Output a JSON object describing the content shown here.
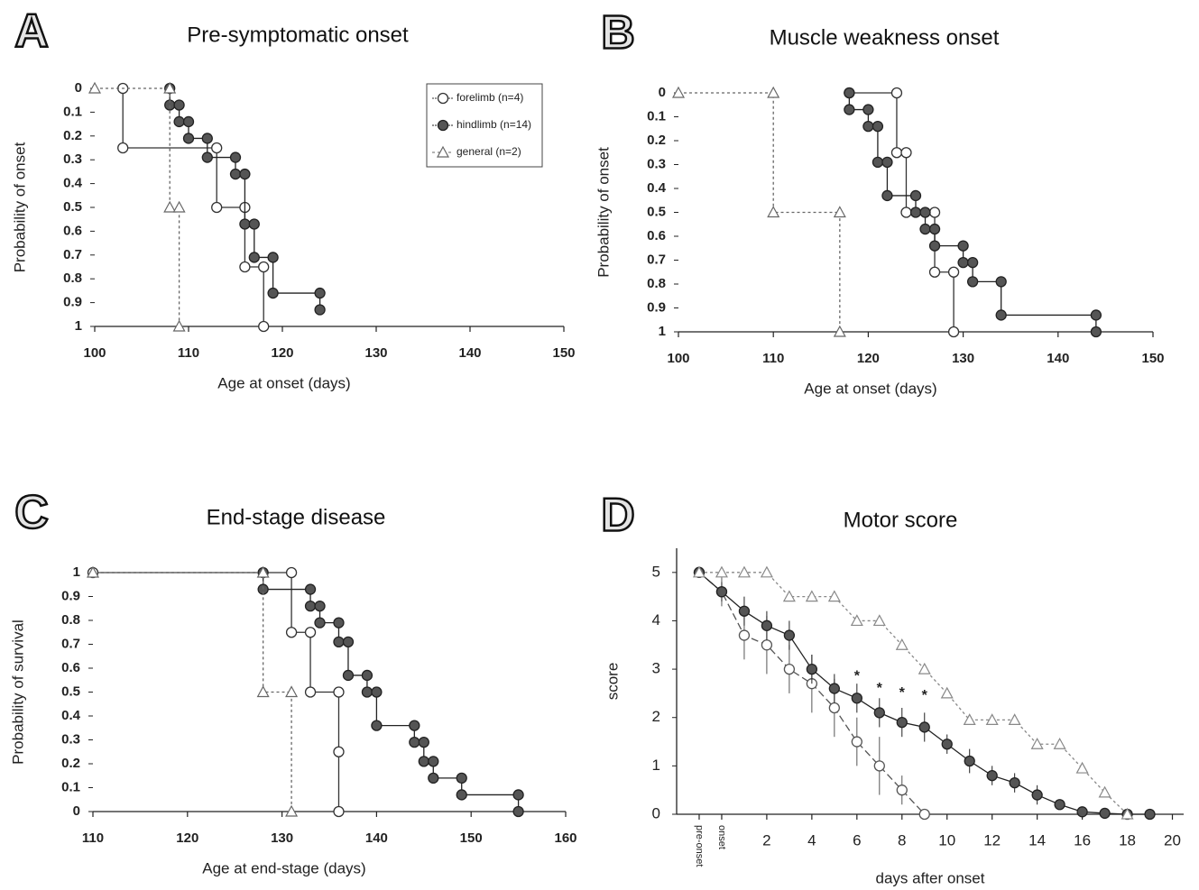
{
  "chart_data": [
    {
      "type": "step",
      "panel": "A",
      "title": "Pre-symptomatic onset",
      "xlabel": "Age at onset (days)",
      "ylabel": "Probability of onset",
      "xlim": [
        100,
        150
      ],
      "xticks": [
        100,
        110,
        120,
        130,
        140,
        150
      ],
      "ylim": [
        1,
        0
      ],
      "yticks": [
        0,
        0.1,
        0.2,
        0.3,
        0.4,
        0.5,
        0.6,
        0.7,
        0.8,
        0.9,
        1
      ],
      "legend": "upper right",
      "series": [
        {
          "name": "forelimb (n=4)",
          "color": "#333333",
          "fill": "#ffffff",
          "marker": "circle",
          "dash": "none",
          "x": [
            103,
            103,
            113,
            113,
            116,
            116,
            118,
            118
          ],
          "values": [
            0,
            0.25,
            0.25,
            0.5,
            0.5,
            0.75,
            0.75,
            1
          ]
        },
        {
          "name": "hindlimb (n=14)",
          "color": "#222222",
          "fill": "#555555",
          "marker": "circle",
          "dash": "none",
          "x": [
            108,
            108,
            109,
            109,
            110,
            110,
            112,
            112,
            115,
            115,
            116,
            116,
            117,
            117,
            119,
            119,
            124,
            124
          ],
          "values": [
            0,
            0.07,
            0.07,
            0.14,
            0.14,
            0.21,
            0.21,
            0.29,
            0.29,
            0.36,
            0.36,
            0.57,
            0.57,
            0.71,
            0.71,
            0.86,
            0.86,
            0.93
          ]
        },
        {
          "name": "general  (n=2)",
          "color": "#666666",
          "fill": "#ffffff",
          "marker": "triangle",
          "dash": "3,3",
          "x": [
            100,
            108,
            108,
            109,
            109
          ],
          "values": [
            0,
            0,
            0.5,
            0.5,
            1
          ]
        }
      ]
    },
    {
      "type": "step",
      "panel": "B",
      "title": "Muscle weakness onset",
      "xlabel": "Age at onset (days)",
      "ylabel": "Probability of onset",
      "xlim": [
        100,
        150
      ],
      "xticks": [
        100,
        110,
        120,
        130,
        140,
        150
      ],
      "ylim": [
        1,
        0
      ],
      "yticks": [
        0,
        0.1,
        0.2,
        0.3,
        0.4,
        0.5,
        0.6,
        0.7,
        0.8,
        0.9,
        1
      ],
      "series": [
        {
          "color": "#333333",
          "fill": "#ffffff",
          "marker": "circle",
          "dash": "none",
          "x": [
            118,
            123,
            123,
            124,
            124,
            127,
            127,
            129,
            129
          ],
          "values": [
            0,
            0,
            0.25,
            0.25,
            0.5,
            0.5,
            0.75,
            0.75,
            1
          ]
        },
        {
          "color": "#222222",
          "fill": "#555555",
          "marker": "circle",
          "dash": "none",
          "x": [
            118,
            118,
            120,
            120,
            121,
            121,
            122,
            122,
            125,
            125,
            126,
            126,
            127,
            127,
            130,
            130,
            131,
            131,
            134,
            134,
            144,
            144
          ],
          "values": [
            0,
            0.07,
            0.07,
            0.14,
            0.14,
            0.29,
            0.29,
            0.43,
            0.43,
            0.5,
            0.5,
            0.57,
            0.57,
            0.64,
            0.64,
            0.71,
            0.71,
            0.79,
            0.79,
            0.93,
            0.93,
            1
          ]
        },
        {
          "color": "#666666",
          "fill": "#ffffff",
          "marker": "triangle",
          "dash": "3,3",
          "x": [
            100,
            110,
            110,
            117,
            117
          ],
          "values": [
            0,
            0,
            0.5,
            0.5,
            1
          ]
        }
      ]
    },
    {
      "type": "step",
      "panel": "C",
      "title": "End-stage disease",
      "xlabel": "Age at end-stage (days)",
      "ylabel": "Probability of survival",
      "xlim": [
        110,
        160
      ],
      "xticks": [
        110,
        120,
        130,
        140,
        150,
        160
      ],
      "ylim": [
        0,
        1
      ],
      "yticks": [
        0,
        0.1,
        0.2,
        0.3,
        0.4,
        0.5,
        0.6,
        0.7,
        0.8,
        0.9,
        1
      ],
      "series": [
        {
          "color": "#333333",
          "fill": "#ffffff",
          "marker": "circle",
          "dash": "none",
          "x": [
            110,
            131,
            131,
            133,
            133,
            136,
            136,
            136
          ],
          "values": [
            1,
            1,
            0.75,
            0.75,
            0.5,
            0.5,
            0.25,
            0
          ]
        },
        {
          "color": "#222222",
          "fill": "#555555",
          "marker": "circle",
          "dash": "none",
          "x": [
            128,
            128,
            133,
            133,
            134,
            134,
            136,
            136,
            137,
            137,
            139,
            139,
            140,
            140,
            144,
            144,
            145,
            145,
            146,
            146,
            149,
            149,
            155,
            155
          ],
          "values": [
            1,
            0.93,
            0.93,
            0.86,
            0.86,
            0.79,
            0.79,
            0.71,
            0.71,
            0.57,
            0.57,
            0.5,
            0.5,
            0.36,
            0.36,
            0.29,
            0.29,
            0.21,
            0.21,
            0.14,
            0.14,
            0.07,
            0.07,
            0
          ]
        },
        {
          "color": "#666666",
          "fill": "#ffffff",
          "marker": "triangle",
          "dash": "3,3",
          "x": [
            110,
            128,
            128,
            131,
            131
          ],
          "values": [
            1,
            1,
            0.5,
            0.5,
            0
          ]
        }
      ]
    },
    {
      "type": "line",
      "panel": "D",
      "title": "Motor score",
      "xlabel": "days after onset",
      "ylabel": "score",
      "xlim": [
        -2,
        20.5
      ],
      "xticks": [
        {
          "value": -1,
          "label": "pre-onset"
        },
        {
          "value": 0,
          "label": "onset"
        },
        2,
        4,
        6,
        8,
        10,
        12,
        14,
        16,
        18,
        20
      ],
      "ylim": [
        0,
        5.5
      ],
      "yticks": [
        0,
        1,
        2,
        3,
        4,
        5
      ],
      "series": [
        {
          "color": "#555555",
          "fill": "#ffffff",
          "marker": "circle",
          "dash": "8,4",
          "x": [
            -1,
            0,
            1,
            2,
            3,
            4,
            5,
            6,
            7,
            8,
            9
          ],
          "values": [
            5,
            4.6,
            3.7,
            3.5,
            3.0,
            2.7,
            2.2,
            1.5,
            1.0,
            0.5,
            0
          ],
          "errors": [
            0,
            0.3,
            0.5,
            0.6,
            0.5,
            0.6,
            0.6,
            0.5,
            0.6,
            0.3,
            0
          ]
        },
        {
          "color": "#222222",
          "fill": "#555555",
          "marker": "circle",
          "dash": "none",
          "x": [
            -1,
            0,
            1,
            2,
            3,
            4,
            5,
            6,
            7,
            8,
            9,
            10,
            11,
            12,
            13,
            14,
            15,
            16,
            17,
            18,
            19
          ],
          "values": [
            5,
            4.6,
            4.2,
            3.9,
            3.7,
            3.0,
            2.6,
            2.4,
            2.1,
            1.9,
            1.8,
            1.45,
            1.1,
            0.8,
            0.65,
            0.4,
            0.2,
            0.05,
            0.02,
            0,
            0
          ],
          "errors": [
            0,
            0.2,
            0.3,
            0.3,
            0.3,
            0.3,
            0.3,
            0.3,
            0.3,
            0.3,
            0.3,
            0.2,
            0.25,
            0.2,
            0.2,
            0.2,
            0.1,
            0.05,
            0,
            0,
            0
          ]
        },
        {
          "color": "#888888",
          "fill": "#ffffff",
          "marker": "triangle",
          "dash": "3,3",
          "x": [
            -1,
            0,
            1,
            2,
            3,
            4,
            5,
            6,
            7,
            8,
            9,
            10,
            11,
            12,
            13,
            14,
            15,
            16,
            17,
            18
          ],
          "values": [
            5,
            5,
            5,
            5,
            4.5,
            4.5,
            4.5,
            4,
            4,
            3.5,
            3,
            2.5,
            1.95,
            1.95,
            1.95,
            1.45,
            1.45,
            0.95,
            0.45,
            0
          ]
        }
      ],
      "annotations": [
        {
          "text": "*",
          "x": 6,
          "y": 2.85
        },
        {
          "text": "*",
          "x": 7,
          "y": 2.6
        },
        {
          "text": "*",
          "x": 8,
          "y": 2.5
        },
        {
          "text": "*",
          "x": 9,
          "y": 2.45
        }
      ]
    }
  ]
}
